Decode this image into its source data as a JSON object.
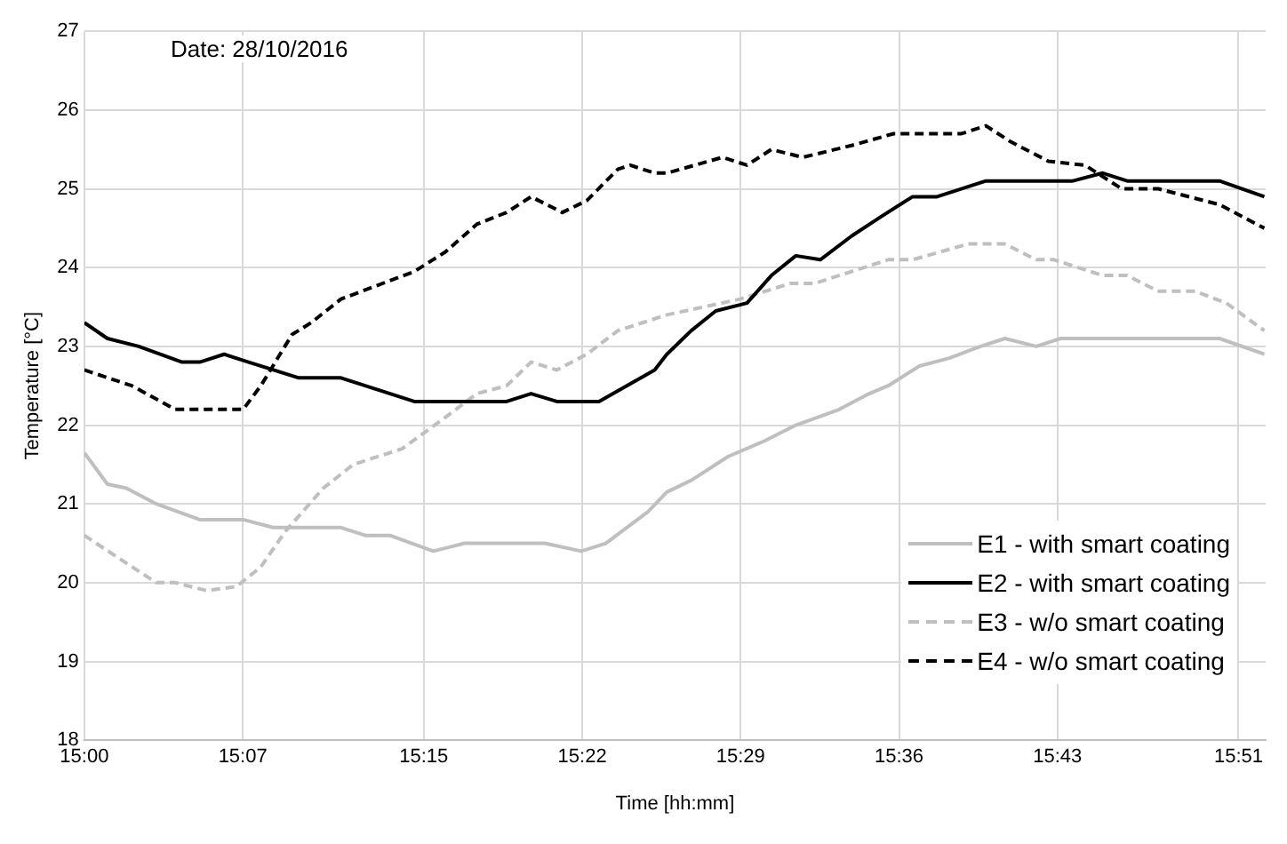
{
  "chart_data": {
    "type": "line",
    "xlabel": "Time [hh:mm]",
    "ylabel": "Temperature [°C]",
    "annotations": [
      "Date: 28/10/2016"
    ],
    "xlim": [
      15,
      15.87
    ],
    "ylim": [
      18,
      27
    ],
    "xticks": [
      {
        "value": 15,
        "label": "15:00"
      },
      {
        "value": 15.1167,
        "label": "15:07"
      },
      {
        "value": 15.25,
        "label": "15:15"
      },
      {
        "value": 15.3667,
        "label": "15:22"
      },
      {
        "value": 15.4833,
        "label": "15:29"
      },
      {
        "value": 15.6,
        "label": "15:36"
      },
      {
        "value": 15.7167,
        "label": "15:43"
      },
      {
        "value": 15.85,
        "label": "15:51"
      }
    ],
    "yticks": [
      18,
      19,
      20,
      21,
      22,
      23,
      24,
      25,
      26,
      27
    ],
    "grid": true,
    "legend": "bottom right",
    "marker": "none",
    "series": [
      {
        "name": "E1 - with smart coating",
        "color": "#bfbfbf",
        "line_style": "solid",
        "x": [
          15,
          15.017,
          15.031,
          15.053,
          15.085,
          15.117,
          15.139,
          15.189,
          15.207,
          15.225,
          15.257,
          15.28,
          15.339,
          15.366,
          15.384,
          15.415,
          15.429,
          15.447,
          15.474,
          15.501,
          15.524,
          15.556,
          15.578,
          15.592,
          15.615,
          15.637,
          15.66,
          15.678,
          15.701,
          15.719,
          15.836,
          15.869
        ],
        "values": [
          21.65,
          21.25,
          21.2,
          21.0,
          20.8,
          20.8,
          20.7,
          20.7,
          20.6,
          20.6,
          20.4,
          20.5,
          20.5,
          20.4,
          20.5,
          20.9,
          21.15,
          21.3,
          21.6,
          21.8,
          22.0,
          22.2,
          22.4,
          22.5,
          22.75,
          22.85,
          23.0,
          23.1,
          23.0,
          23.1,
          23.1,
          22.9
        ]
      },
      {
        "name": "E2 - with smart coating",
        "color": "#000000",
        "line_style": "solid",
        "x": [
          15,
          15.017,
          15.04,
          15.072,
          15.085,
          15.103,
          15.121,
          15.158,
          15.189,
          15.243,
          15.311,
          15.329,
          15.348,
          15.379,
          15.42,
          15.429,
          15.447,
          15.465,
          15.488,
          15.506,
          15.524,
          15.542,
          15.565,
          15.587,
          15.61,
          15.628,
          15.664,
          15.728,
          15.75,
          15.768,
          15.836,
          15.869
        ],
        "values": [
          23.3,
          23.1,
          23.0,
          22.8,
          22.8,
          22.9,
          22.8,
          22.6,
          22.6,
          22.3,
          22.3,
          22.4,
          22.3,
          22.3,
          22.7,
          22.9,
          23.2,
          23.45,
          23.55,
          23.9,
          24.15,
          24.1,
          24.4,
          24.65,
          24.9,
          24.9,
          25.1,
          25.1,
          25.2,
          25.1,
          25.1,
          24.9
        ]
      },
      {
        "name": "E3 - w/o smart coating",
        "color": "#bfbfbf",
        "line_style": "dashed",
        "x": [
          15,
          15.022,
          15.053,
          15.067,
          15.09,
          15.112,
          15.13,
          15.148,
          15.176,
          15.198,
          15.234,
          15.266,
          15.289,
          15.311,
          15.329,
          15.348,
          15.37,
          15.393,
          15.411,
          15.429,
          15.483,
          15.52,
          15.538,
          15.592,
          15.61,
          15.651,
          15.678,
          15.701,
          15.714,
          15.75,
          15.768,
          15.791,
          15.818,
          15.841,
          15.869
        ],
        "values": [
          20.6,
          20.35,
          20.0,
          20.0,
          19.9,
          19.95,
          20.2,
          20.65,
          21.2,
          21.5,
          21.7,
          22.1,
          22.4,
          22.5,
          22.8,
          22.7,
          22.9,
          23.2,
          23.3,
          23.4,
          23.6,
          23.8,
          23.8,
          24.1,
          24.1,
          24.3,
          24.3,
          24.1,
          24.1,
          23.9,
          23.9,
          23.7,
          23.7,
          23.55,
          23.2
        ]
      },
      {
        "name": "E4 - w/o smart coating",
        "color": "#000000",
        "line_style": "dashed",
        "x": [
          15,
          15.035,
          15.067,
          15.117,
          15.13,
          15.153,
          15.167,
          15.189,
          15.212,
          15.243,
          15.266,
          15.289,
          15.311,
          15.329,
          15.352,
          15.37,
          15.393,
          15.402,
          15.42,
          15.429,
          15.47,
          15.488,
          15.506,
          15.529,
          15.565,
          15.596,
          15.646,
          15.664,
          15.682,
          15.71,
          15.737,
          15.764,
          15.791,
          15.836,
          15.869
        ],
        "values": [
          22.7,
          22.5,
          22.2,
          22.2,
          22.5,
          23.15,
          23.3,
          23.6,
          23.75,
          23.95,
          24.2,
          24.55,
          24.7,
          24.9,
          24.7,
          24.85,
          25.25,
          25.3,
          25.2,
          25.2,
          25.4,
          25.3,
          25.5,
          25.4,
          25.55,
          25.7,
          25.7,
          25.8,
          25.6,
          25.35,
          25.3,
          25.0,
          25.0,
          24.8,
          24.5
        ]
      }
    ]
  }
}
